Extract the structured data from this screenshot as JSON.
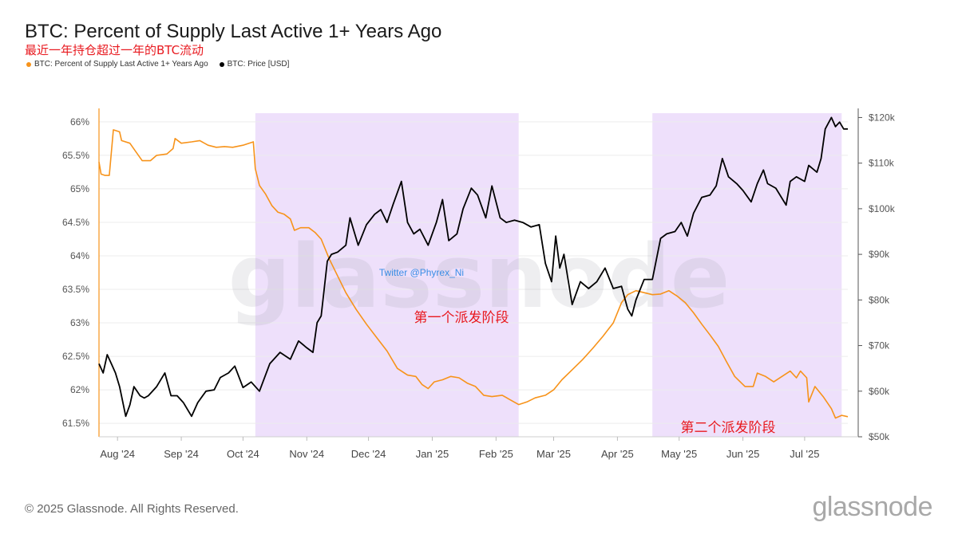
{
  "header": {
    "title": "BTC: Percent of Supply Last Active 1+ Years Ago",
    "subtitle": "最近一年持仓超过一年的BTC流动"
  },
  "legend": [
    {
      "label": "BTC: Percent of Supply Last Active 1+ Years Ago",
      "color": "#f7931a"
    },
    {
      "label": "BTC: Price [USD]",
      "color": "#000000"
    }
  ],
  "annotations": {
    "twitter": "Twitter @Phyrex_Ni",
    "phase1": "第一个派发阶段",
    "phase2": "第二个派发阶段",
    "watermark": "glassnode"
  },
  "footer": {
    "copyright": "© 2025 Glassnode. All Rights Reserved.",
    "brand": "glassnode"
  },
  "colors": {
    "supply": "#f7931a",
    "price": "#000000",
    "shade": "#eee0fb",
    "annotation_red": "#e8191f",
    "annotation_blue": "#3a8ee6"
  },
  "chart_data": {
    "type": "line",
    "x_start": "2024-07-23",
    "x_end": "2025-07-22",
    "x_ticks": [
      {
        "date": "2024-08-01",
        "label": "Aug '24"
      },
      {
        "date": "2024-09-01",
        "label": "Sep '24"
      },
      {
        "date": "2024-10-01",
        "label": "Oct '24"
      },
      {
        "date": "2024-11-01",
        "label": "Nov '24"
      },
      {
        "date": "2024-12-01",
        "label": "Dec '24"
      },
      {
        "date": "2025-01-01",
        "label": "Jan '25"
      },
      {
        "date": "2025-02-01",
        "label": "Feb '25"
      },
      {
        "date": "2025-03-01",
        "label": "Mar '25"
      },
      {
        "date": "2025-04-01",
        "label": "Apr '25"
      },
      {
        "date": "2025-05-01",
        "label": "May '25"
      },
      {
        "date": "2025-06-01",
        "label": "Jun '25"
      },
      {
        "date": "2025-07-01",
        "label": "Jul '25"
      }
    ],
    "y_left": {
      "min": 61.3,
      "max": 66.2,
      "ticks": [
        {
          "v": 66,
          "label": "66%"
        },
        {
          "v": 65.5,
          "label": "65.5%"
        },
        {
          "v": 65,
          "label": "65%"
        },
        {
          "v": 64.5,
          "label": "64.5%"
        },
        {
          "v": 64,
          "label": "64%"
        },
        {
          "v": 63.5,
          "label": "63.5%"
        },
        {
          "v": 63,
          "label": "63%"
        },
        {
          "v": 62.5,
          "label": "62.5%"
        },
        {
          "v": 62,
          "label": "62%"
        },
        {
          "v": 61.5,
          "label": "61.5%"
        }
      ]
    },
    "y_right": {
      "min": 50000,
      "max": 122000,
      "ticks": [
        {
          "v": 120000,
          "label": "$120k"
        },
        {
          "v": 110000,
          "label": "$110k"
        },
        {
          "v": 100000,
          "label": "$100k"
        },
        {
          "v": 90000,
          "label": "$90k"
        },
        {
          "v": 80000,
          "label": "$80k"
        },
        {
          "v": 70000,
          "label": "$70k"
        },
        {
          "v": 60000,
          "label": "$60k"
        },
        {
          "v": 50000,
          "label": "$50k"
        }
      ]
    },
    "grid": true,
    "legend_position": "top-left",
    "shaded_ranges": [
      {
        "start": "2024-10-07",
        "end": "2025-02-12",
        "label": "第一个派发阶段"
      },
      {
        "start": "2025-04-18",
        "end": "2025-07-19",
        "label": "第二个派发阶段"
      }
    ],
    "series": [
      {
        "name": "BTC: Percent of Supply Last Active 1+ Years Ago",
        "axis": "left",
        "points": [
          [
            "2024-07-23",
            65.4
          ],
          [
            "2024-07-24",
            65.22
          ],
          [
            "2024-07-26",
            65.2
          ],
          [
            "2024-07-28",
            65.2
          ],
          [
            "2024-07-30",
            65.88
          ],
          [
            "2024-08-02",
            65.85
          ],
          [
            "2024-08-03",
            65.72
          ],
          [
            "2024-08-07",
            65.68
          ],
          [
            "2024-08-10",
            65.55
          ],
          [
            "2024-08-13",
            65.42
          ],
          [
            "2024-08-17",
            65.42
          ],
          [
            "2024-08-20",
            65.5
          ],
          [
            "2024-08-25",
            65.52
          ],
          [
            "2024-08-28",
            65.6
          ],
          [
            "2024-08-29",
            65.75
          ],
          [
            "2024-09-01",
            65.68
          ],
          [
            "2024-09-06",
            65.7
          ],
          [
            "2024-09-10",
            65.72
          ],
          [
            "2024-09-14",
            65.65
          ],
          [
            "2024-09-18",
            65.62
          ],
          [
            "2024-09-22",
            65.63
          ],
          [
            "2024-09-26",
            65.62
          ],
          [
            "2024-10-01",
            65.65
          ],
          [
            "2024-10-06",
            65.7
          ],
          [
            "2024-10-07",
            65.3
          ],
          [
            "2024-10-09",
            65.05
          ],
          [
            "2024-10-12",
            64.92
          ],
          [
            "2024-10-15",
            64.75
          ],
          [
            "2024-10-18",
            64.65
          ],
          [
            "2024-10-21",
            64.62
          ],
          [
            "2024-10-24",
            64.55
          ],
          [
            "2024-10-26",
            64.38
          ],
          [
            "2024-10-29",
            64.42
          ],
          [
            "2024-11-02",
            64.42
          ],
          [
            "2024-11-05",
            64.35
          ],
          [
            "2024-11-08",
            64.25
          ],
          [
            "2024-11-12",
            63.95
          ],
          [
            "2024-11-16",
            63.7
          ],
          [
            "2024-11-20",
            63.45
          ],
          [
            "2024-11-25",
            63.2
          ],
          [
            "2024-11-30",
            62.98
          ],
          [
            "2024-12-05",
            62.78
          ],
          [
            "2024-12-10",
            62.58
          ],
          [
            "2024-12-15",
            62.32
          ],
          [
            "2024-12-20",
            62.22
          ],
          [
            "2024-12-24",
            62.2
          ],
          [
            "2024-12-27",
            62.08
          ],
          [
            "2024-12-30",
            62.02
          ],
          [
            "2025-01-02",
            62.12
          ],
          [
            "2025-01-06",
            62.15
          ],
          [
            "2025-01-10",
            62.2
          ],
          [
            "2025-01-14",
            62.18
          ],
          [
            "2025-01-18",
            62.1
          ],
          [
            "2025-01-22",
            62.05
          ],
          [
            "2025-01-26",
            61.92
          ],
          [
            "2025-01-30",
            61.9
          ],
          [
            "2025-02-04",
            61.92
          ],
          [
            "2025-02-08",
            61.85
          ],
          [
            "2025-02-12",
            61.78
          ],
          [
            "2025-02-16",
            61.82
          ],
          [
            "2025-02-20",
            61.88
          ],
          [
            "2025-02-25",
            61.92
          ],
          [
            "2025-03-01",
            62.0
          ],
          [
            "2025-03-05",
            62.15
          ],
          [
            "2025-03-10",
            62.3
          ],
          [
            "2025-03-15",
            62.45
          ],
          [
            "2025-03-20",
            62.62
          ],
          [
            "2025-03-25",
            62.8
          ],
          [
            "2025-03-30",
            63.0
          ],
          [
            "2025-04-03",
            63.3
          ],
          [
            "2025-04-06",
            63.42
          ],
          [
            "2025-04-10",
            63.48
          ],
          [
            "2025-04-14",
            63.45
          ],
          [
            "2025-04-18",
            63.42
          ],
          [
            "2025-04-22",
            63.43
          ],
          [
            "2025-04-26",
            63.48
          ],
          [
            "2025-04-30",
            63.4
          ],
          [
            "2025-05-04",
            63.3
          ],
          [
            "2025-05-08",
            63.15
          ],
          [
            "2025-05-12",
            62.98
          ],
          [
            "2025-05-16",
            62.82
          ],
          [
            "2025-05-20",
            62.65
          ],
          [
            "2025-05-24",
            62.42
          ],
          [
            "2025-05-28",
            62.2
          ],
          [
            "2025-06-02",
            62.05
          ],
          [
            "2025-06-06",
            62.05
          ],
          [
            "2025-06-08",
            62.25
          ],
          [
            "2025-06-12",
            62.2
          ],
          [
            "2025-06-16",
            62.12
          ],
          [
            "2025-06-20",
            62.2
          ],
          [
            "2025-06-24",
            62.28
          ],
          [
            "2025-06-27",
            62.18
          ],
          [
            "2025-06-29",
            62.28
          ],
          [
            "2025-07-02",
            62.18
          ],
          [
            "2025-07-03",
            61.82
          ],
          [
            "2025-07-06",
            62.05
          ],
          [
            "2025-07-10",
            61.9
          ],
          [
            "2025-07-14",
            61.72
          ],
          [
            "2025-07-16",
            61.58
          ],
          [
            "2025-07-19",
            61.62
          ],
          [
            "2025-07-22",
            61.6
          ]
        ]
      },
      {
        "name": "BTC: Price [USD]",
        "axis": "right",
        "points": [
          [
            "2024-07-23",
            66000
          ],
          [
            "2024-07-25",
            64000
          ],
          [
            "2024-07-27",
            68000
          ],
          [
            "2024-07-29",
            66000
          ],
          [
            "2024-07-31",
            64000
          ],
          [
            "2024-08-02",
            61000
          ],
          [
            "2024-08-05",
            54500
          ],
          [
            "2024-08-07",
            57000
          ],
          [
            "2024-08-09",
            61000
          ],
          [
            "2024-08-12",
            59000
          ],
          [
            "2024-08-14",
            58500
          ],
          [
            "2024-08-16",
            59000
          ],
          [
            "2024-08-20",
            61000
          ],
          [
            "2024-08-24",
            64000
          ],
          [
            "2024-08-27",
            59000
          ],
          [
            "2024-08-30",
            59000
          ],
          [
            "2024-09-02",
            57500
          ],
          [
            "2024-09-06",
            54500
          ],
          [
            "2024-09-09",
            57500
          ],
          [
            "2024-09-13",
            60000
          ],
          [
            "2024-09-17",
            60300
          ],
          [
            "2024-09-20",
            63000
          ],
          [
            "2024-09-24",
            64000
          ],
          [
            "2024-09-27",
            65500
          ],
          [
            "2024-10-01",
            60800
          ],
          [
            "2024-10-05",
            62000
          ],
          [
            "2024-10-09",
            60000
          ],
          [
            "2024-10-14",
            66000
          ],
          [
            "2024-10-19",
            68500
          ],
          [
            "2024-10-24",
            67000
          ],
          [
            "2024-10-28",
            71000
          ],
          [
            "2024-11-01",
            69500
          ],
          [
            "2024-11-04",
            68500
          ],
          [
            "2024-11-06",
            75000
          ],
          [
            "2024-11-08",
            76500
          ],
          [
            "2024-11-11",
            88500
          ],
          [
            "2024-11-13",
            90000
          ],
          [
            "2024-11-16",
            90500
          ],
          [
            "2024-11-20",
            92000
          ],
          [
            "2024-11-22",
            98000
          ],
          [
            "2024-11-26",
            92000
          ],
          [
            "2024-11-30",
            96500
          ],
          [
            "2024-12-04",
            98800
          ],
          [
            "2024-12-07",
            99800
          ],
          [
            "2024-12-10",
            97000
          ],
          [
            "2024-12-13",
            101000
          ],
          [
            "2024-12-17",
            106000
          ],
          [
            "2024-12-20",
            97000
          ],
          [
            "2024-12-23",
            94500
          ],
          [
            "2024-12-26",
            95500
          ],
          [
            "2024-12-30",
            92000
          ],
          [
            "2025-01-03",
            97000
          ],
          [
            "2025-01-06",
            102000
          ],
          [
            "2025-01-09",
            93000
          ],
          [
            "2025-01-13",
            94500
          ],
          [
            "2025-01-16",
            100000
          ],
          [
            "2025-01-20",
            104500
          ],
          [
            "2025-01-23",
            103000
          ],
          [
            "2025-01-27",
            98000
          ],
          [
            "2025-01-30",
            105000
          ],
          [
            "2025-02-03",
            98000
          ],
          [
            "2025-02-06",
            97000
          ],
          [
            "2025-02-10",
            97500
          ],
          [
            "2025-02-14",
            97000
          ],
          [
            "2025-02-18",
            96000
          ],
          [
            "2025-02-22",
            96500
          ],
          [
            "2025-02-25",
            88000
          ],
          [
            "2025-02-28",
            84000
          ],
          [
            "2025-03-02",
            94000
          ],
          [
            "2025-03-04",
            87000
          ],
          [
            "2025-03-06",
            90000
          ],
          [
            "2025-03-10",
            79000
          ],
          [
            "2025-03-14",
            84000
          ],
          [
            "2025-03-18",
            82500
          ],
          [
            "2025-03-22",
            84000
          ],
          [
            "2025-03-26",
            87000
          ],
          [
            "2025-03-30",
            82500
          ],
          [
            "2025-04-03",
            83000
          ],
          [
            "2025-04-06",
            78000
          ],
          [
            "2025-04-08",
            76500
          ],
          [
            "2025-04-10",
            80000
          ],
          [
            "2025-04-14",
            84500
          ],
          [
            "2025-04-18",
            84500
          ],
          [
            "2025-04-22",
            93500
          ],
          [
            "2025-04-25",
            94500
          ],
          [
            "2025-04-29",
            95000
          ],
          [
            "2025-05-02",
            97000
          ],
          [
            "2025-05-05",
            94000
          ],
          [
            "2025-05-08",
            99000
          ],
          [
            "2025-05-12",
            102500
          ],
          [
            "2025-05-16",
            103000
          ],
          [
            "2025-05-19",
            105000
          ],
          [
            "2025-05-22",
            111000
          ],
          [
            "2025-05-25",
            107000
          ],
          [
            "2025-05-29",
            105500
          ],
          [
            "2025-06-01",
            104000
          ],
          [
            "2025-06-05",
            101500
          ],
          [
            "2025-06-08",
            105500
          ],
          [
            "2025-06-11",
            108500
          ],
          [
            "2025-06-13",
            105500
          ],
          [
            "2025-06-17",
            104500
          ],
          [
            "2025-06-22",
            100800
          ],
          [
            "2025-06-24",
            106000
          ],
          [
            "2025-06-27",
            107000
          ],
          [
            "2025-07-01",
            106000
          ],
          [
            "2025-07-03",
            109500
          ],
          [
            "2025-07-07",
            108000
          ],
          [
            "2025-07-09",
            111000
          ],
          [
            "2025-07-11",
            117500
          ],
          [
            "2025-07-14",
            120000
          ],
          [
            "2025-07-16",
            118000
          ],
          [
            "2025-07-18",
            119000
          ],
          [
            "2025-07-20",
            117500
          ],
          [
            "2025-07-22",
            117500
          ]
        ]
      }
    ]
  }
}
